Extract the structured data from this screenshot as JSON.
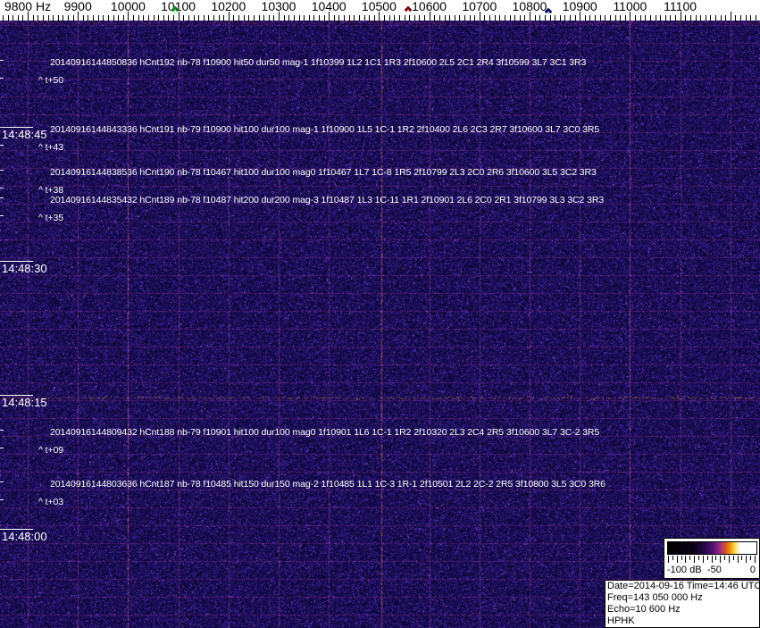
{
  "freq_axis": {
    "unit": "Hz",
    "tick_start_hz": 9750,
    "tick_end_hz": 11250,
    "minor_step_hz": 10,
    "major_step_hz": 100,
    "labels": [
      {
        "freq": 9800,
        "text": "9800 Hz"
      },
      {
        "freq": 9900,
        "text": "9900"
      },
      {
        "freq": 10000,
        "text": "10000"
      },
      {
        "freq": 10100,
        "text": "10100"
      },
      {
        "freq": 10200,
        "text": "10200"
      },
      {
        "freq": 10300,
        "text": "10300"
      },
      {
        "freq": 10400,
        "text": "10400"
      },
      {
        "freq": 10500,
        "text": "10500"
      },
      {
        "freq": 10600,
        "text": "10600"
      },
      {
        "freq": 10700,
        "text": "10700"
      },
      {
        "freq": 10800,
        "text": "10800"
      },
      {
        "freq": 10900,
        "text": "10900"
      },
      {
        "freq": 11000,
        "text": "11000"
      },
      {
        "freq": 11100,
        "text": "11100"
      }
    ],
    "markers": [
      {
        "name": "marker-green",
        "freq": 10100,
        "fill": "#1ecb46",
        "border": "#0a7a1e",
        "center": "#d8ffd8"
      },
      {
        "name": "marker-red",
        "freq": 10565,
        "fill": "#e31e1e",
        "border": "#6a0000",
        "center": "#ffffff"
      },
      {
        "name": "marker-blue",
        "freq": 10845,
        "fill": "#2941d6",
        "border": "#0a0a50",
        "center": "#ffffff"
      }
    ]
  },
  "time_axis": {
    "labels": [
      {
        "text": "14:48:45",
        "sec": 45
      },
      {
        "text": "14:48:30",
        "sec": 30
      },
      {
        "text": "14:48:15",
        "sec": 15
      },
      {
        "text": "14:48:00",
        "sec": 0
      }
    ]
  },
  "events": [
    {
      "line": "20140916144850836 hCnt192 nb-78 f10900 hit50 dur50 mag-1 1f10399 1L2 1C1 1R3 2f10600 2L5 2C1 2R4 3f10599 3L7 3C1 3R3",
      "t_label": "^ t+50",
      "t_sec": 50.836
    },
    {
      "line": "20140916144843336 hCnt191 nb-79 f10900 hit100 dur100 mag-1 1f10900 1L5 1C-1 1R2 2f10400 2L6 2C3 2R7 3f10600 3L7 3C0 3R5",
      "t_label": "^ t+43",
      "t_sec": 43.336
    },
    {
      "line": "20140916144838536 hCnt190 nb-78 f10467 hit100 dur100 mag0 1f10467 1L7 1C-8 1R5 2f10799 2L3 2C0 2R6 3f10600 3L5 3C2 3R3",
      "t_label": "^ t+38",
      "t_sec": 38.536
    },
    {
      "line": "20140916144835432 hCnt189 nb-78 f10487 hit200 dur200 mag-3 1f10487 1L3 1C-11 1R1 2f10901 2L6 2C0 2R1 3f10799 3L3 3C2 3R3",
      "t_label": "^ t+35",
      "t_sec": 35.432
    },
    {
      "line": "20140916144809432 hCnt188 nb-79 f10901 hit100 dur100 mag0 1f10901 1L6 1C-1 1R2 2f10320 2L3 2C4 2R5 3f10600 3L7 3C-2 3R5",
      "t_label": "^ t+09",
      "t_sec": 9.432
    },
    {
      "line": "20140916144803636 hCnt187 nb-78 f10485 hit150 dur150 mag-2 1f10485 1L1 1C-3 1R-1 2f10501 2L2 2C-2 2R5 3f10800 3L5 3C0 3R6",
      "t_label": "^ t+03",
      "t_sec": 3.636
    }
  ],
  "colorbar": {
    "min_label": "-100 dB",
    "mid_label": "-50",
    "max_label": "0",
    "gradient": [
      "#000000 0%",
      "#0a0218 30%",
      "#2c0a50 43%",
      "#5c1478 52%",
      "#a02c84 59%",
      "#d85228 65%",
      "#f08c10 70%",
      "#ffc62e 74%",
      "#ffec96 78%",
      "#ffffff 82%",
      "#ffffff 100%"
    ]
  },
  "infobox": {
    "lines": [
      "Date=2014-09-16 Time=14:46 UTC",
      "Freq=143 050 000 Hz",
      "Echo=10 600 Hz",
      "HPHK"
    ]
  },
  "colors": {
    "axis_bg": "#ffffff",
    "axis_text": "#000000",
    "annotation_text": "#ffffff",
    "background_base": "#1c0f5e",
    "grid_magenta": "#b946b4",
    "bright_pink": "#ff78a0",
    "bright_orange": "#ff9646",
    "bright_red_band": "#e64660"
  }
}
